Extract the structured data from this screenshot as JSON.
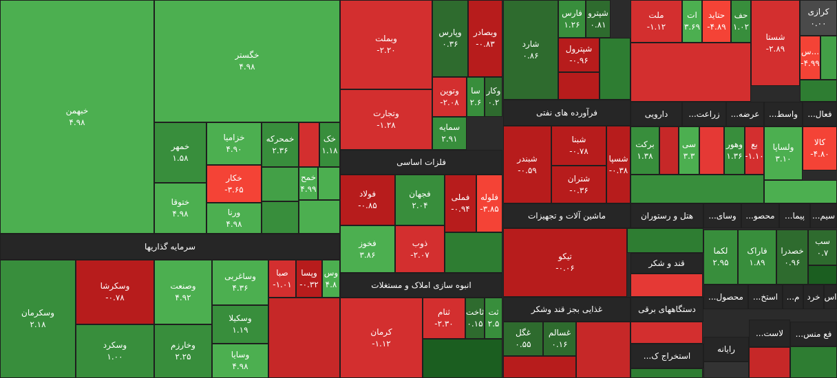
{
  "chart_data": {
    "type": "treemap",
    "categories": [
      "خبهمن",
      "خگستر",
      "خمهر",
      "ختوقا",
      "خزامیا",
      "خکار",
      "ورنا",
      "خمحرکه",
      "خک",
      "خمح",
      "وسکرمان",
      "وسکرشا",
      "وسکرد",
      "وصنعت",
      "وخارزم",
      "وساغربی",
      "وسکیلا",
      "وسایا",
      "صبا",
      "وپسا",
      "وس",
      "وبملت",
      "وتجارت",
      "وپارس",
      "وبصادر",
      "وتوین",
      "سا",
      "وکار",
      "سمایه",
      "فولاد",
      "فجهان",
      "فملی",
      "فلوله",
      "فخوز",
      "ذوب",
      "کرمان",
      "ثنام",
      "ثاخت",
      "ثت",
      "شارد",
      "فارس",
      "شپترو",
      "شپترول",
      "ملت",
      "ات",
      "حتاید",
      "حف",
      "شستا",
      "کرازی",
      "س...",
      "شبندر",
      "شبنا",
      "شتران",
      "شسپا",
      "برکت",
      "سی",
      "وهور",
      "بع",
      "ولساپا",
      "کالا",
      "تیکو",
      "غگل",
      "غسالم",
      "لکما",
      "فاراک",
      "خصدرا",
      "سب"
    ],
    "values": [
      4.98,
      4.98,
      1.58,
      4.98,
      4.9,
      -3.65,
      4.98,
      2.36,
      1.18,
      4.99,
      2.18,
      -0.78,
      1.0,
      4.92,
      2.25,
      4.36,
      1.19,
      4.98,
      -1.01,
      -0.32,
      4.8,
      -2.2,
      -1.28,
      0.36,
      -0.83,
      -2.08,
      2.6,
      0.2,
      2.91,
      -0.85,
      2.04,
      -0.94,
      -3.85,
      3.86,
      -2.07,
      -1.12,
      -2.3,
      0.15,
      2.5,
      0.86,
      1.26,
      0.81,
      -0.96,
      -1.12,
      3.69,
      -4.89,
      1.02,
      -2.89,
      0.0,
      -4.99,
      -0.59,
      -0.78,
      -0.36,
      -0.38,
      1.38,
      3.3,
      1.36,
      -1.1,
      3.1,
      -4.8,
      -0.06,
      0.55,
      0.16,
      2.95,
      1.89,
      0.96,
      0.7
    ],
    "value_labels": [
      "۴.۹۸",
      "۴.۹۸",
      "۱.۵۸",
      "۴.۹۸",
      "۴.۹۰",
      "-۳.۶۵",
      "۴.۹۸",
      "۲.۳۶",
      "۱.۱۸",
      "۴.۹۹",
      "۲.۱۸",
      "-۰.۷۸",
      "۱.۰۰",
      "۴.۹۲",
      "۲.۲۵",
      "۴.۳۶",
      "۱.۱۹",
      "۴.۹۸",
      "-۱.۰۱",
      "-۰.۳۲",
      "۴.۸",
      "-۲.۲۰",
      "-۱.۲۸",
      "۰.۳۶",
      "-۰.۸۳",
      "-۲.۰۸",
      "۲.۶",
      "۰.۲",
      "۲.۹۱",
      "-۰.۸۵",
      "۲.۰۴",
      "-۰.۹۴",
      "-۳.۸۵",
      "۳.۸۶",
      "-۲.۰۷",
      "-۱.۱۲",
      "-۲.۳۰",
      "۰.۱۵",
      "۲.۵",
      "۰.۸۶",
      "۱.۲۶",
      "۰.۸۱",
      "-۰.۹۶",
      "-۱.۱۲",
      "۳.۶۹",
      "-۴.۸۹",
      "۱.۰۲",
      "-۲.۸۹",
      "۰.۰۰",
      "-۴.۹۹",
      "-۰.۵۹",
      "-۰.۷۸",
      "-۰.۳۶",
      "-۰.۳۸",
      "۱.۳۸",
      "۳.۳",
      "۱.۳۶",
      "-۱.۱۰",
      "۳.۱۰",
      "-۴.۸۰",
      "-۰.۰۶",
      "۰.۵۵",
      "۰.۱۶",
      "۲.۹۵",
      "۱.۸۹",
      "۰.۹۶",
      "۰.۷"
    ],
    "sectors": [
      "سرمایه گذاریها",
      "فلزات اساسی",
      "انبوه سازی املاک و مستغلات",
      "فرآورده های نفتی",
      "ماشین آلات و تجهیزات",
      "غذایی بجز قند وشکر",
      "دارویی",
      "زراعت...",
      "عرضه...",
      "واسط...",
      "فعال...",
      "هتل و رستوران",
      "وسای...",
      "محصو...",
      "پیما...",
      "سیم...",
      "قند و شکر",
      "دستگاههای برقی",
      "استخراج ک...",
      "محصول...",
      "استخ...",
      "م...",
      "خرد",
      "اس",
      "رایانه",
      "لاست...",
      "فع منس..."
    ]
  }
}
